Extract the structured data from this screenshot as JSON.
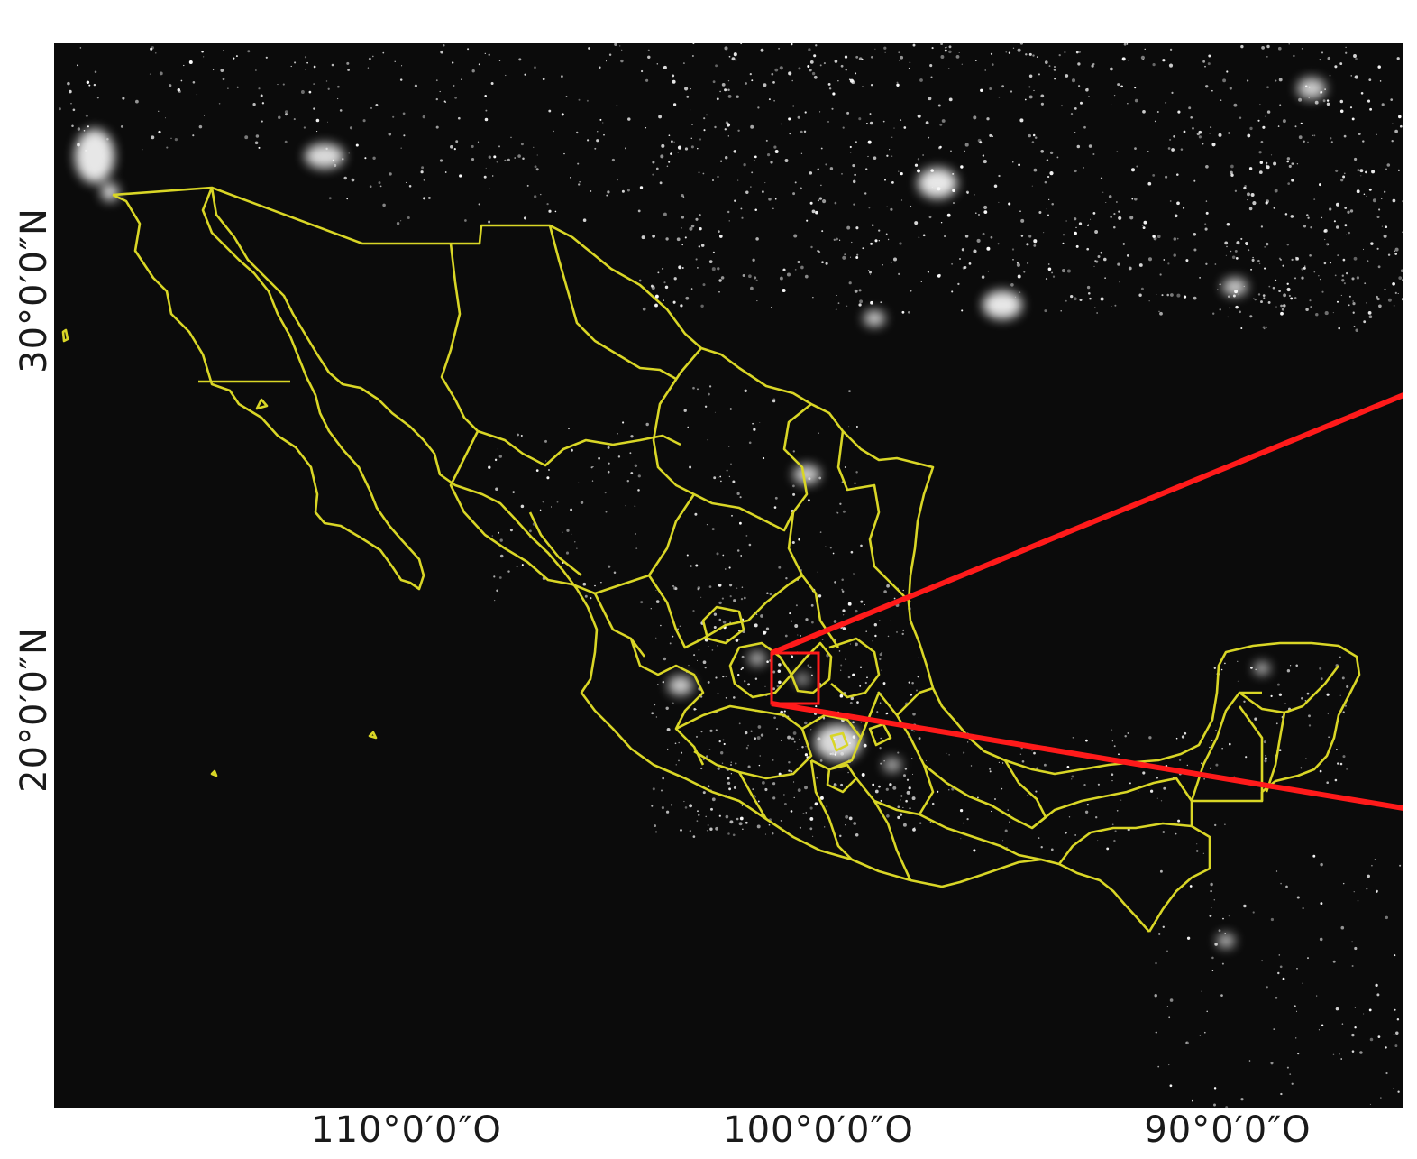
{
  "map": {
    "axes": {
      "lon_labels": [
        "110°0′0″O",
        "100°0′0″O",
        "90°0′0″O"
      ],
      "lat_labels": [
        "30°0′0″N",
        "20°0′0″N"
      ]
    },
    "colors": {
      "background": "#0b0b0b",
      "lights": "#ffffff",
      "boundaries": "#d9d626",
      "inset_marker": "#ff1a1a"
    }
  }
}
